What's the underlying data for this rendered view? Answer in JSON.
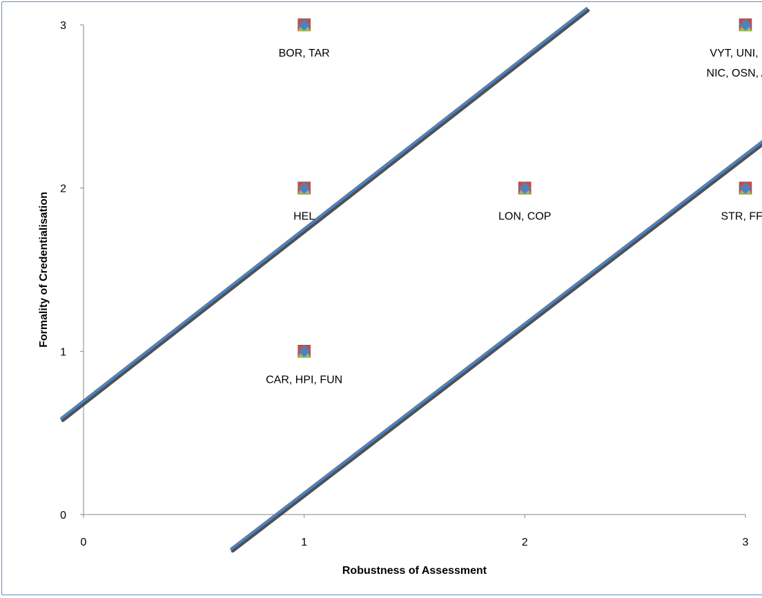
{
  "chart_data": {
    "type": "scatter",
    "xlabel": "Robustness of Assessment",
    "ylabel": "Formality of Credentialisation",
    "xlim": [
      0,
      3
    ],
    "ylim": [
      0,
      3
    ],
    "x_ticks": [
      "0",
      "1",
      "2",
      "3"
    ],
    "y_ticks": [
      "0",
      "1",
      "2",
      "3"
    ],
    "grid": false,
    "legend": "none",
    "points": [
      {
        "x": 1,
        "y": 3,
        "label_lines": [
          "BOR, TAR"
        ]
      },
      {
        "x": 1,
        "y": 2,
        "label_lines": [
          "HEL"
        ]
      },
      {
        "x": 1,
        "y": 1,
        "label_lines": [
          "CAR, HPI, FUN"
        ]
      },
      {
        "x": 2,
        "y": 2,
        "label_lines": [
          "LON, COP"
        ]
      },
      {
        "x": 3,
        "y": 3,
        "label_lines": [
          "VYT, UNI, SLI,",
          "NIC, OSN, ACC"
        ]
      },
      {
        "x": 3,
        "y": 2,
        "label_lines": [
          "STR, FFE"
        ]
      }
    ],
    "reference_lines": [
      {
        "x1": -0.1,
        "y1": 0.59,
        "x2": 2.28,
        "y2": 3.1
      },
      {
        "x1": 0.67,
        "y1": -0.21,
        "x2": 3.1,
        "y2": 2.31
      }
    ],
    "colors": {
      "marker_back": "#c0504d",
      "marker_mid": "#9bbb59",
      "marker_front": "#4f81bd",
      "line": "#4f81bd",
      "line_shadow": "#333333",
      "axis": "#868686",
      "frame": "#5b8bc9"
    }
  }
}
